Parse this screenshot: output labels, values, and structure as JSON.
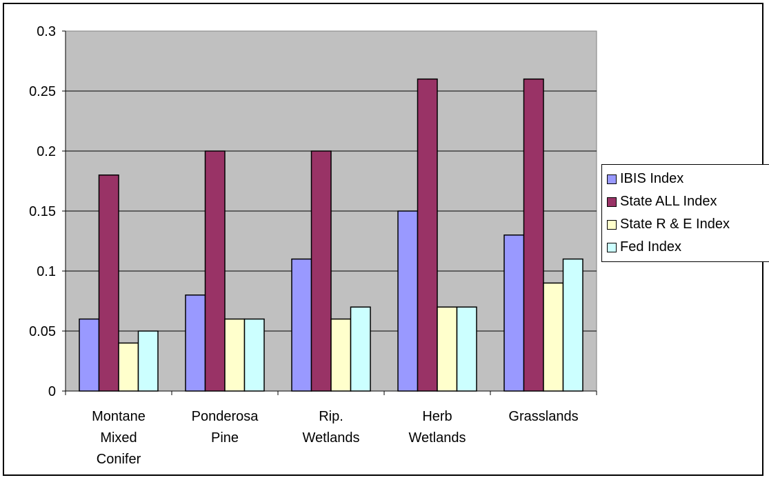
{
  "chart_data": {
    "type": "bar",
    "categories": [
      [
        "Montane",
        "Mixed",
        "Conifer"
      ],
      [
        "Ponderosa",
        "Pine"
      ],
      [
        "Rip.",
        "Wetlands"
      ],
      [
        "Herb",
        "Wetlands"
      ],
      [
        "Grasslands"
      ]
    ],
    "series": [
      {
        "name": "IBIS Index",
        "color": "#9999ff",
        "values": [
          0.06,
          0.08,
          0.11,
          0.15,
          0.13
        ]
      },
      {
        "name": "State ALL Index",
        "color": "#993366",
        "values": [
          0.18,
          0.2,
          0.2,
          0.26,
          0.26
        ]
      },
      {
        "name": "State R & E Index",
        "color": "#ffffcc",
        "values": [
          0.04,
          0.06,
          0.06,
          0.07,
          0.09
        ]
      },
      {
        "name": "Fed Index",
        "color": "#ccffff",
        "values": [
          0.05,
          0.06,
          0.07,
          0.07,
          0.11
        ]
      }
    ],
    "yticks": [
      "0",
      "0.05",
      "0.1",
      "0.15",
      "0.2",
      "0.25",
      "0.3"
    ],
    "ylim": [
      0,
      0.3
    ],
    "plot_background": "#c0c0c0",
    "grid": true,
    "legend_position": "right"
  }
}
